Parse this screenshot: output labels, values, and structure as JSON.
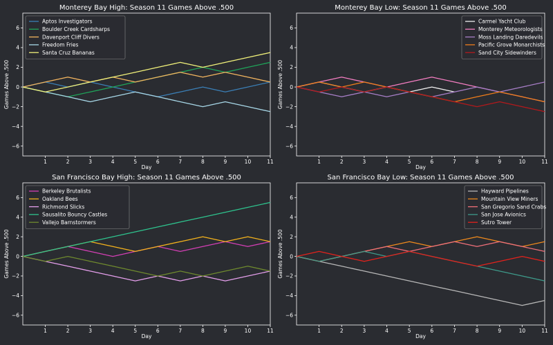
{
  "chart_data": [
    {
      "type": "line",
      "title": "Monterey Bay High: Season 11 Games Above .500",
      "xlabel": "Day",
      "ylabel": "Games Above .500",
      "xlim": [
        0,
        11
      ],
      "ylim": [
        -7,
        7.5
      ],
      "xticks": [
        1,
        2,
        3,
        4,
        5,
        6,
        7,
        8,
        9,
        10,
        11
      ],
      "yticks": [
        -6,
        -4,
        -2,
        0,
        2,
        4,
        6
      ],
      "legend_position": "top-left",
      "x": [
        0,
        1,
        2,
        3,
        4,
        5,
        6,
        7,
        8,
        9,
        10,
        11
      ],
      "series": [
        {
          "name": "Aptos Investigators",
          "color": "#3b7fb6",
          "values": [
            0,
            0.5,
            0,
            0.5,
            0,
            -0.5,
            -1,
            -0.5,
            0,
            -0.5,
            0,
            0.5
          ]
        },
        {
          "name": "Boulder Creek Cardsharps",
          "color": "#1fa65a",
          "values": [
            0,
            -0.5,
            -1,
            -0.5,
            0,
            0.5,
            1,
            1.5,
            2,
            1.5,
            2,
            2.5
          ]
        },
        {
          "name": "Davenport Cliff Divers",
          "color": "#f3b55f",
          "values": [
            0,
            0.5,
            1,
            0.5,
            1,
            0.5,
            1,
            1.5,
            1,
            1.5,
            1,
            0.5
          ]
        },
        {
          "name": "Freedom Fries",
          "color": "#a8d8e8",
          "values": [
            0,
            -0.5,
            -1,
            -1.5,
            -1,
            -0.5,
            -1,
            -1.5,
            -2,
            -1.5,
            -2,
            -2.5
          ]
        },
        {
          "name": "Santa Cruz Bananas",
          "color": "#f2f27a",
          "values": [
            0,
            -0.5,
            0,
            0.5,
            1,
            1.5,
            2,
            2.5,
            2,
            2.5,
            3,
            3.5
          ]
        }
      ]
    },
    {
      "type": "line",
      "title": "Monterey Bay Low: Season 11 Games Above .500",
      "xlabel": "Day",
      "ylabel": "Games Above .500",
      "xlim": [
        0,
        11
      ],
      "ylim": [
        -7,
        7.5
      ],
      "xticks": [
        1,
        2,
        3,
        4,
        5,
        6,
        7,
        8,
        9,
        10,
        11
      ],
      "yticks": [
        -6,
        -4,
        -2,
        0,
        2,
        4,
        6
      ],
      "legend_position": "top-right",
      "x": [
        0,
        1,
        2,
        3,
        4,
        5,
        6,
        7,
        8,
        9,
        10,
        11
      ],
      "series": [
        {
          "name": "Carmel Yacht Club",
          "color": "#f0f0f0",
          "values": [
            0,
            0.5,
            0,
            -0.5,
            0,
            -0.5,
            0,
            -0.5,
            null,
            null,
            null,
            null
          ]
        },
        {
          "name": "Monterey Meteorologists",
          "color": "#f57ec2",
          "values": [
            0,
            0.5,
            1,
            0.5,
            0,
            0.5,
            1,
            0.5,
            0,
            -0.5,
            -1,
            -1.5
          ]
        },
        {
          "name": "Moss Landing Daredevils",
          "color": "#a87fc8",
          "values": [
            0,
            -0.5,
            -1,
            -0.5,
            -1,
            -0.5,
            -1,
            -0.5,
            0,
            -0.5,
            0,
            0.5
          ]
        },
        {
          "name": "Pacific Grove Monarchists",
          "color": "#f07d1a",
          "values": [
            0,
            0.5,
            0,
            0.5,
            0,
            -0.5,
            -1,
            -1.5,
            -1,
            -0.5,
            -1,
            -1.5
          ]
        },
        {
          "name": "Sand City Sidewinders",
          "color": "#b3191c",
          "values": [
            0,
            -0.5,
            0,
            -0.5,
            0,
            -0.5,
            -1,
            -1.5,
            -2,
            -1.5,
            -2,
            -2.5
          ]
        }
      ]
    },
    {
      "type": "line",
      "title": "San Francisco Bay High: Season 11 Games Above .500",
      "xlabel": "Day",
      "ylabel": "Games Above .500",
      "xlim": [
        0,
        11
      ],
      "ylim": [
        -7,
        7.5
      ],
      "xticks": [
        1,
        2,
        3,
        4,
        5,
        6,
        7,
        8,
        9,
        10,
        11
      ],
      "yticks": [
        -6,
        -4,
        -2,
        0,
        2,
        4,
        6
      ],
      "legend_position": "top-left",
      "x": [
        0,
        1,
        2,
        3,
        4,
        5,
        6,
        7,
        8,
        9,
        10,
        11
      ],
      "series": [
        {
          "name": "Berkeley Brutalists",
          "color": "#d43fb5",
          "values": [
            0,
            0.5,
            1,
            0.5,
            0,
            0.5,
            1,
            0.5,
            1,
            1.5,
            1,
            1.5
          ]
        },
        {
          "name": "Oakland Bees",
          "color": "#f5b31c",
          "values": [
            0,
            0.5,
            1,
            1.5,
            1,
            0.5,
            1,
            1.5,
            2,
            1.5,
            2,
            1.5
          ]
        },
        {
          "name": "Richmond Slicks",
          "color": "#e59fec",
          "values": [
            0,
            -0.5,
            -1,
            -1.5,
            -2,
            -2.5,
            -2,
            -2.5,
            -2,
            -2.5,
            -2,
            -1.5
          ]
        },
        {
          "name": "Sausalito Bouncy Castles",
          "color": "#2ec48e",
          "values": [
            0,
            0.5,
            1,
            1.5,
            2,
            2.5,
            3,
            3.5,
            4,
            4.5,
            5,
            5.5
          ]
        },
        {
          "name": "Vallejo Barnstormers",
          "color": "#6f8a2e",
          "values": [
            0,
            -0.5,
            0,
            -0.5,
            -1,
            -1.5,
            -2,
            -1.5,
            -2,
            -1.5,
            -1,
            -1.5
          ]
        }
      ]
    },
    {
      "type": "line",
      "title": "San Francisco Bay Low: Season 11 Games Above .500",
      "xlabel": "Day",
      "ylabel": "Games Above .500",
      "xlim": [
        0,
        11
      ],
      "ylim": [
        -7,
        7.5
      ],
      "xticks": [
        1,
        2,
        3,
        4,
        5,
        6,
        7,
        8,
        9,
        10,
        11
      ],
      "yticks": [
        -6,
        -4,
        -2,
        0,
        2,
        4,
        6
      ],
      "legend_position": "top-right",
      "x": [
        0,
        1,
        2,
        3,
        4,
        5,
        6,
        7,
        8,
        9,
        10,
        11
      ],
      "series": [
        {
          "name": "Hayward Pipelines",
          "color": "#b8b8b8",
          "values": [
            0,
            -0.5,
            -1,
            -1.5,
            -2,
            -2.5,
            -3,
            -3.5,
            -4,
            -4.5,
            -5,
            -4.5
          ]
        },
        {
          "name": "Mountain View Miners",
          "color": "#f08a1c",
          "values": [
            0,
            -0.5,
            0,
            0.5,
            1,
            1.5,
            1,
            1.5,
            2,
            1.5,
            1,
            1.5
          ]
        },
        {
          "name": "San Gregorio Sand Crabs",
          "color": "#f0707a",
          "values": [
            0,
            -0.5,
            0,
            0.5,
            1,
            0.5,
            1,
            1.5,
            1,
            1.5,
            1,
            0.5
          ]
        },
        {
          "name": "San Jose Avionics",
          "color": "#3e9a8a",
          "values": [
            0,
            -0.5,
            0,
            0.5,
            0,
            0.5,
            0,
            -0.5,
            -1,
            -1.5,
            -2,
            -2.5
          ]
        },
        {
          "name": "Sutro Tower",
          "color": "#e4221c",
          "values": [
            0,
            0.5,
            0,
            -0.5,
            0,
            0.5,
            0,
            -0.5,
            -1,
            -0.5,
            0,
            -0.5
          ]
        }
      ]
    }
  ]
}
